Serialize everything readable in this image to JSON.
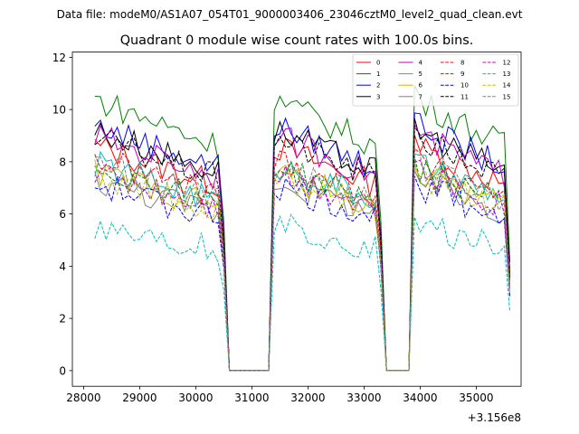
{
  "chart_data": {
    "type": "line",
    "suptitle": "Data file: modeM0/AS1A07_054T01_9000003406_23046cztM0_level2_quad_clean.evt",
    "title": "Quadrant 0 module wise count rates with 100.0s bins.",
    "xlabel": "",
    "ylabel": "",
    "x_offset_label": "+3.156e8",
    "xlim": [
      27800,
      35800
    ],
    "ylim": [
      -0.6,
      12.2
    ],
    "x_ticks": [
      28000,
      29000,
      30000,
      31000,
      32000,
      33000,
      34000,
      35000
    ],
    "x_tick_labels": [
      "28000",
      "29000",
      "30000",
      "31000",
      "32000",
      "33000",
      "34000",
      "35000"
    ],
    "y_ticks": [
      0,
      2,
      4,
      6,
      8,
      10,
      12
    ],
    "y_tick_labels": [
      "0",
      "2",
      "4",
      "6",
      "8",
      "10",
      "12"
    ],
    "legend_position": "top-right",
    "segments": [
      [
        28200,
        30500
      ],
      [
        31400,
        33300
      ],
      [
        33900,
        35600
      ]
    ],
    "gaps": [
      [
        30500,
        31400
      ],
      [
        33300,
        33900
      ]
    ],
    "series": [
      {
        "name": "0",
        "color": "#ff0000",
        "dash": false,
        "base": 8.6
      },
      {
        "name": "1",
        "color": "#008000",
        "dash": false,
        "base": 10.4
      },
      {
        "name": "2",
        "color": "#0000ff",
        "dash": false,
        "base": 9.4
      },
      {
        "name": "3",
        "color": "#000000",
        "dash": false,
        "base": 9.2
      },
      {
        "name": "4",
        "color": "#bf00bf",
        "dash": false,
        "base": 9.0
      },
      {
        "name": "5",
        "color": "#00bfbf",
        "dash": false,
        "base": 7.9
      },
      {
        "name": "6",
        "color": "#bfbf00",
        "dash": false,
        "base": 7.6
      },
      {
        "name": "7",
        "color": "#808080",
        "dash": false,
        "base": 7.3
      },
      {
        "name": "8",
        "color": "#ff0000",
        "dash": true,
        "base": 8.1
      },
      {
        "name": "9",
        "color": "#008000",
        "dash": true,
        "base": 7.8
      },
      {
        "name": "10",
        "color": "#0000ff",
        "dash": true,
        "base": 7.1
      },
      {
        "name": "11",
        "color": "#000000",
        "dash": true,
        "base": 8.9
      },
      {
        "name": "12",
        "color": "#bf00bf",
        "dash": true,
        "base": 7.6
      },
      {
        "name": "13",
        "color": "#00bfbf",
        "dash": true,
        "base": 5.6
      },
      {
        "name": "14",
        "color": "#bfbf00",
        "dash": true,
        "base": 7.4
      },
      {
        "name": "15",
        "color": "#808080",
        "dash": true,
        "base": 7.9
      }
    ]
  }
}
